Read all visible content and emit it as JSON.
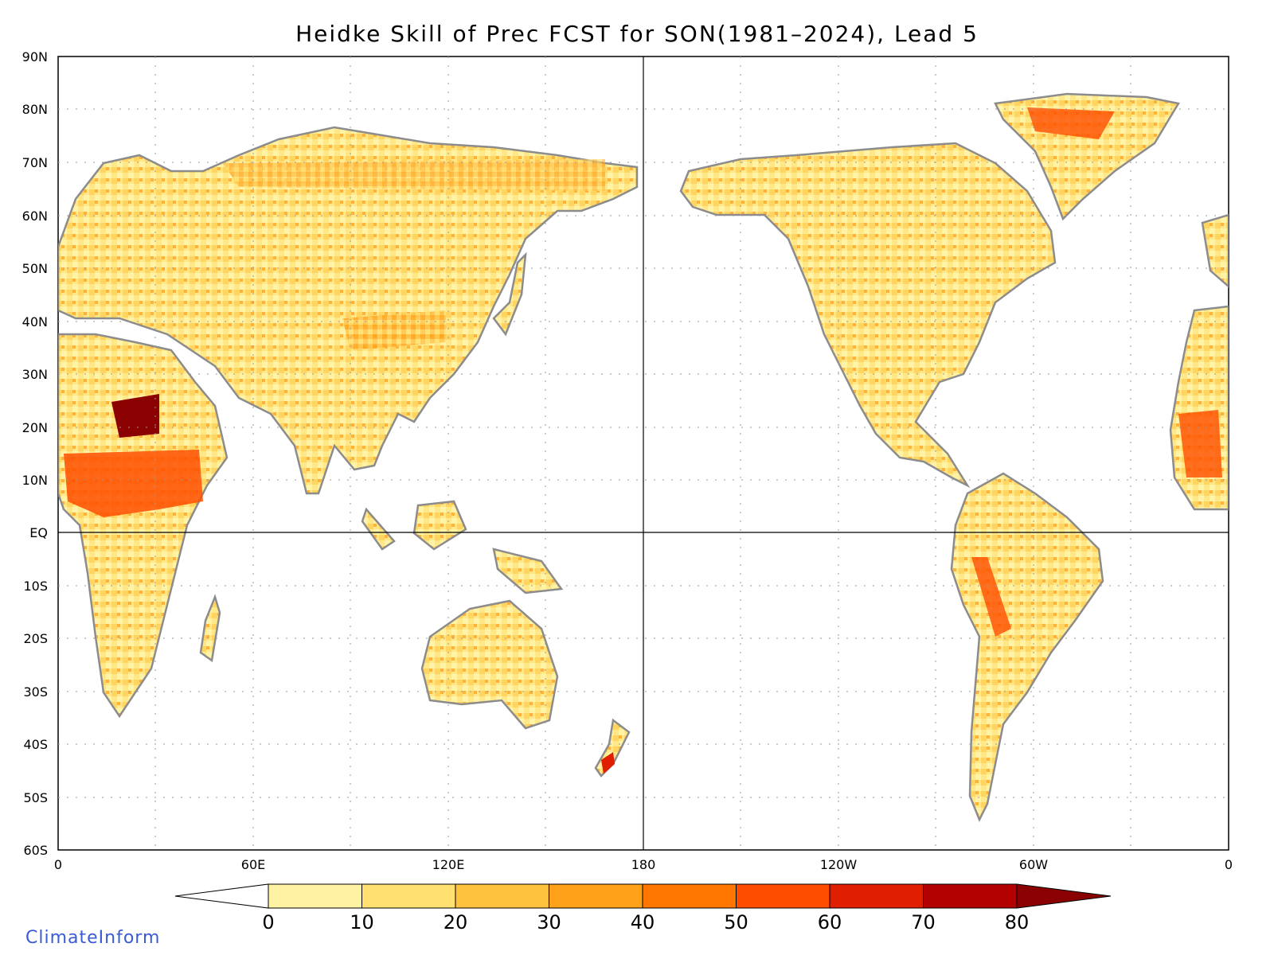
{
  "title": "Heidke Skill of Prec FCST for SON(1981–2024), Lead 5",
  "lat_ticks": [
    "90N",
    "80N",
    "70N",
    "60N",
    "50N",
    "40N",
    "30N",
    "20N",
    "10N",
    "EQ",
    "10S",
    "20S",
    "30S",
    "40S",
    "50S",
    "60S"
  ],
  "lon_ticks": [
    "0",
    "60E",
    "120E",
    "180",
    "120W",
    "60W",
    "0"
  ],
  "colorbar": {
    "labels": [
      "0",
      "10",
      "20",
      "30",
      "40",
      "50",
      "60",
      "70",
      "80"
    ],
    "colors": [
      "#fff3a3",
      "#ffe070",
      "#ffc23e",
      "#ffa21a",
      "#ff7700",
      "#ff4d00",
      "#e01e00",
      "#b30000"
    ],
    "under_color": "#ffffff",
    "over_color": "#8b0000"
  },
  "colors": {
    "land_outline": "#8c8c8c",
    "ocean": "#ffffff",
    "grid": "#9a9a9a"
  },
  "credit": "ClimateInform"
}
